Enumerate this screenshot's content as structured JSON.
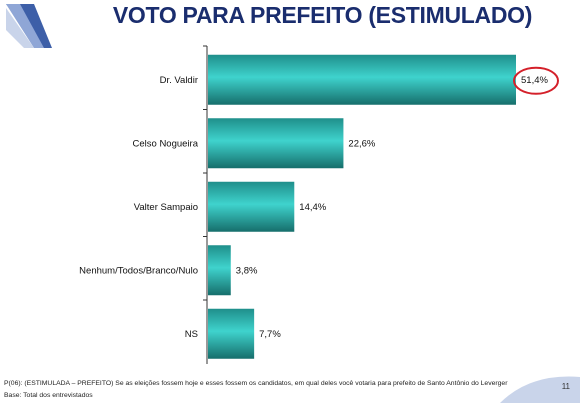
{
  "header": {
    "title": "VOTO PARA PREFEITO (ESTIMULADO)"
  },
  "chart_data": {
    "type": "bar",
    "orientation": "horizontal",
    "categories": [
      "Dr. Valdir",
      "Celso Nogueira",
      "Valter Sampaio",
      "Nenhum/Todos/Branco/Nulo",
      "NS"
    ],
    "values": [
      51.4,
      22.6,
      14.4,
      3.8,
      7.7
    ],
    "value_labels": [
      "51,4%",
      "22,6%",
      "14,4%",
      "3,8%",
      "7,7%"
    ],
    "highlight_index": 0,
    "xlim": [
      0,
      55
    ],
    "grid": false,
    "colors": {
      "bar": "#2fc4bf",
      "highlight_ring": "#d4202a"
    }
  },
  "footer": {
    "question": "P(06): (ESTIMULADA – PREFEITO) Se as eleições fossem hoje e esses fossem os candidatos, em qual deles você votaria para prefeito de Santo Antônio do Leverger",
    "base": "Base: Total dos entrevistados",
    "page": "11"
  },
  "colors": {
    "title": "#1a2d6e",
    "logo": "#4a6cb3"
  }
}
